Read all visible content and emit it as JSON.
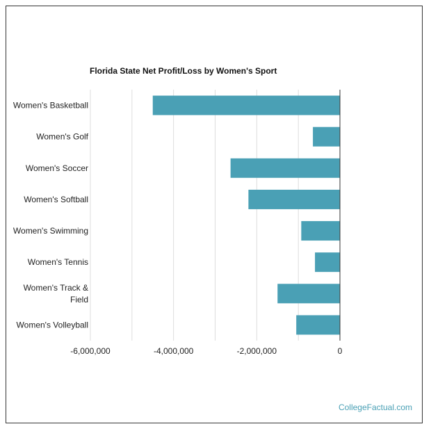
{
  "source_credit": "CollegeFactual.com",
  "colors": {
    "bar": "#4aa0b5",
    "grid": "#dddddd",
    "zero_line": "#333333",
    "border": "#333333"
  },
  "chart_data": {
    "type": "bar",
    "orientation": "horizontal",
    "title": "Florida State Net Profit/Loss by Women's Sport",
    "xlabel": "",
    "ylabel": "",
    "categories": [
      "Women's Basketball",
      "Women's Golf",
      "Women's Soccer",
      "Women's Softball",
      "Women's Swimming",
      "Women's Tennis",
      "Women's Track & Field",
      "Women's Volleyball"
    ],
    "category_lines": [
      [
        "Women's Basketball"
      ],
      [
        "Women's Golf"
      ],
      [
        "Women's Soccer"
      ],
      [
        "Women's Softball"
      ],
      [
        "Women's Swimming"
      ],
      [
        "Women's Tennis"
      ],
      [
        "Women's Track &",
        "Field"
      ],
      [
        "Women's Volleyball"
      ]
    ],
    "values": [
      -4500000,
      -650000,
      -2630000,
      -2200000,
      -930000,
      -600000,
      -1500000,
      -1050000
    ],
    "xlim": [
      -6000000,
      0
    ],
    "ticks": [
      -6000000,
      -4000000,
      -2000000,
      0
    ],
    "tick_labels": [
      "-6,000,000",
      "-4,000,000",
      "-2,000,000",
      "0"
    ],
    "minor_gridlines": [
      -5000000,
      -3000000,
      -1000000
    ],
    "grid": true,
    "legend": "none"
  }
}
